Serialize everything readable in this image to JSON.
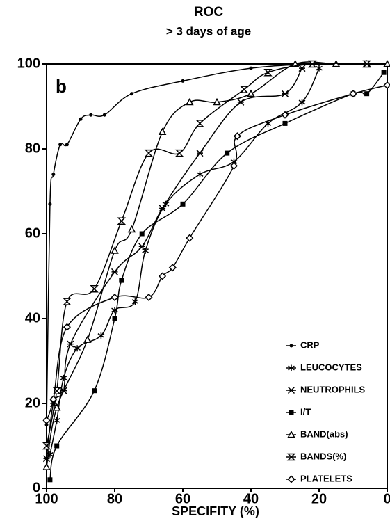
{
  "chart_data": {
    "type": "line",
    "title": "ROC",
    "subtitle": "> 3 days of age",
    "panel_label": "b",
    "xlabel": "SPECIFITY (%)",
    "xlim": [
      100,
      0
    ],
    "xticks": [
      100,
      80,
      60,
      40,
      20,
      0
    ],
    "ylim": [
      0,
      100
    ],
    "yticks": [
      0,
      20,
      40,
      60,
      80,
      100
    ],
    "legend": "lower right",
    "series": [
      {
        "name": "CRP",
        "color": "#000000",
        "marker": "dot",
        "x": [
          100,
          99,
          98,
          96,
          94,
          90,
          87,
          83,
          75,
          60,
          40,
          20,
          0
        ],
        "values": [
          15,
          67,
          74,
          81,
          81,
          87,
          88,
          88,
          93,
          96,
          99,
          100,
          100
        ]
      },
      {
        "name": "LEUCOCYTES",
        "color": "#000000",
        "marker": "asterisk",
        "x": [
          99,
          97,
          95,
          91,
          84,
          80,
          74,
          71,
          65,
          55,
          45,
          35,
          25,
          20
        ],
        "values": [
          8,
          16,
          26,
          33,
          36,
          42,
          44,
          56,
          67,
          74,
          77,
          86,
          91,
          99
        ]
      },
      {
        "name": "NEUTROPHILS",
        "color": "#000000",
        "marker": "tristar",
        "x": [
          100,
          98,
          95,
          93,
          80,
          72,
          66,
          55,
          43,
          30,
          25
        ],
        "values": [
          7,
          20,
          23,
          34,
          51,
          57,
          66,
          79,
          91,
          93,
          99
        ]
      },
      {
        "name": "I/T",
        "color": "#000000",
        "marker": "square",
        "x": [
          99,
          97,
          86,
          80,
          78,
          72,
          60,
          47,
          30,
          10,
          6,
          1
        ],
        "values": [
          2,
          10,
          23,
          40,
          49,
          60,
          67,
          79,
          86,
          93,
          93,
          98
        ]
      },
      {
        "name": "BAND(abs)",
        "color": "#000000",
        "marker": "triangle",
        "x": [
          100,
          97,
          88,
          80,
          75,
          66,
          58,
          50,
          40,
          27,
          15,
          6,
          0
        ],
        "values": [
          5,
          19,
          35,
          56,
          61,
          84,
          91,
          91,
          93,
          100,
          100,
          100,
          100
        ]
      },
      {
        "name": "BANDS(%)",
        "color": "#000000",
        "marker": "hourglass",
        "x": [
          100,
          97,
          94,
          86,
          78,
          70,
          61,
          55,
          42,
          35,
          22,
          6
        ],
        "values": [
          10,
          23,
          44,
          47,
          63,
          79,
          79,
          86,
          94,
          98,
          100,
          100
        ]
      },
      {
        "name": "PLATELETS",
        "color": "#000000",
        "marker": "diamond",
        "x": [
          100,
          98,
          94,
          80,
          70,
          66,
          63,
          58,
          45,
          44,
          30,
          10,
          0
        ],
        "values": [
          16,
          21,
          38,
          45,
          45,
          50,
          52,
          59,
          76,
          83,
          88,
          93,
          95
        ]
      }
    ]
  }
}
